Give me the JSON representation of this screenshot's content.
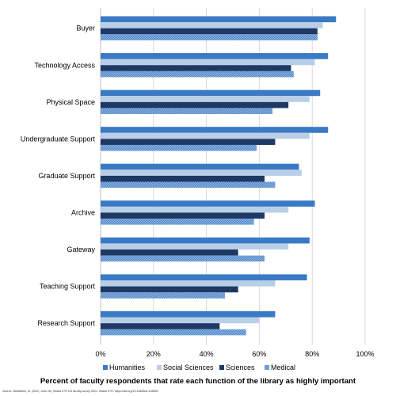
{
  "chart_data": {
    "type": "bar",
    "orientation": "horizontal",
    "categories": [
      "Buyer",
      "Technology Access",
      "Physical Space",
      "Undergraduate Support",
      "Graduate Support",
      "Archive",
      "Gateway",
      "Teaching Support",
      "Research Support"
    ],
    "series": [
      {
        "name": "Humanities",
        "color": "#3a7ac4",
        "pattern": "solid",
        "values": [
          89,
          86,
          83,
          86,
          75,
          81,
          79,
          78,
          66
        ]
      },
      {
        "name": "Social Sciences",
        "color": "#b9cfe8",
        "pattern": "solid",
        "values": [
          84,
          81,
          79,
          79,
          76,
          71,
          71,
          66,
          60
        ]
      },
      {
        "name": "Sciences",
        "color": "#1f3864",
        "pattern": "solid",
        "values": [
          82,
          72,
          71,
          66,
          62,
          62,
          52,
          52,
          45
        ]
      },
      {
        "name": "Medical",
        "color": "#6fa0d8",
        "pattern": "checkered",
        "values": [
          82,
          73,
          65,
          59,
          66,
          58,
          62,
          47,
          55
        ]
      }
    ],
    "x_ticks": [
      "0%",
      "20%",
      "40%",
      "60%",
      "80%",
      "100%"
    ],
    "xlim": [
      0,
      100
    ],
    "grid": "vertical",
    "legend_position": "bottom",
    "title": "Percent of faculty respondents that rate each function of the library as highly important"
  },
  "source_note": "Source: Blankstein, M. (2022, June 26). Ithaka S+R US faculty survey 2021. Ithaka S+R. https://doi.org/10.18665/sr.316896"
}
